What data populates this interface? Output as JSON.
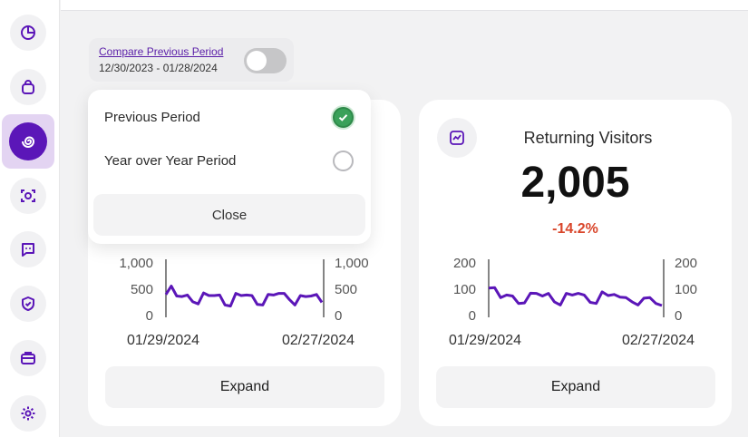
{
  "sidebar": {
    "items": [
      {
        "icon": "pie-chart-icon"
      },
      {
        "icon": "shopping-bag-icon"
      },
      {
        "icon": "spiral-icon",
        "active": true
      },
      {
        "icon": "focus-scan-icon"
      },
      {
        "icon": "chat-icon"
      },
      {
        "icon": "shield-check-icon"
      },
      {
        "icon": "briefcase-icon"
      },
      {
        "icon": "gear-icon"
      }
    ],
    "accent": "#5b16b8",
    "active_bg": "#e3d4f2"
  },
  "compare": {
    "link_label": "Compare Previous Period",
    "date_range": "12/30/2023 - 01/28/2024",
    "toggle_on": false
  },
  "popover": {
    "options": [
      {
        "label": "Previous Period",
        "selected": true
      },
      {
        "label": "Year over Year Period",
        "selected": false
      }
    ],
    "close_label": "Close"
  },
  "cards": {
    "left": {
      "y_ticks": [
        "1,000",
        "500",
        "0"
      ],
      "y_ticks_right": [
        "1,000",
        "500",
        "0"
      ],
      "x_start": "01/29/2024",
      "x_end": "02/27/2024",
      "expand_label": "Expand"
    },
    "right": {
      "icon": "line-chart-icon",
      "title": "Returning Visitors",
      "value": "2,005",
      "change": "-14.2%",
      "change_color": "#d9462b",
      "y_ticks": [
        "200",
        "100",
        "0"
      ],
      "y_ticks_right": [
        "200",
        "100",
        "0"
      ],
      "x_start": "01/29/2024",
      "x_end": "02/27/2024",
      "expand_label": "Expand"
    }
  },
  "chart_data": [
    {
      "type": "line",
      "title": "",
      "ylim": [
        0,
        1000
      ],
      "x_range": [
        "01/29/2024",
        "02/27/2024"
      ],
      "series": [
        {
          "values": [
            400,
            560,
            370,
            360,
            390,
            260,
            220,
            430,
            380,
            380,
            390,
            200,
            180,
            420,
            380,
            390,
            380,
            210,
            200,
            400,
            390,
            420,
            420,
            300,
            200,
            380,
            360,
            370,
            400,
            250
          ]
        }
      ],
      "color": "#5b16b8"
    },
    {
      "type": "line",
      "title": "Returning Visitors",
      "ylim": [
        0,
        200
      ],
      "x_range": [
        "01/29/2024",
        "02/27/2024"
      ],
      "series": [
        {
          "values": [
            104,
            106,
            68,
            78,
            74,
            46,
            48,
            85,
            84,
            74,
            84,
            52,
            40,
            84,
            78,
            84,
            78,
            50,
            46,
            90,
            76,
            80,
            70,
            68,
            52,
            40,
            66,
            68,
            46,
            38
          ]
        }
      ],
      "color": "#5b16b8"
    }
  ]
}
